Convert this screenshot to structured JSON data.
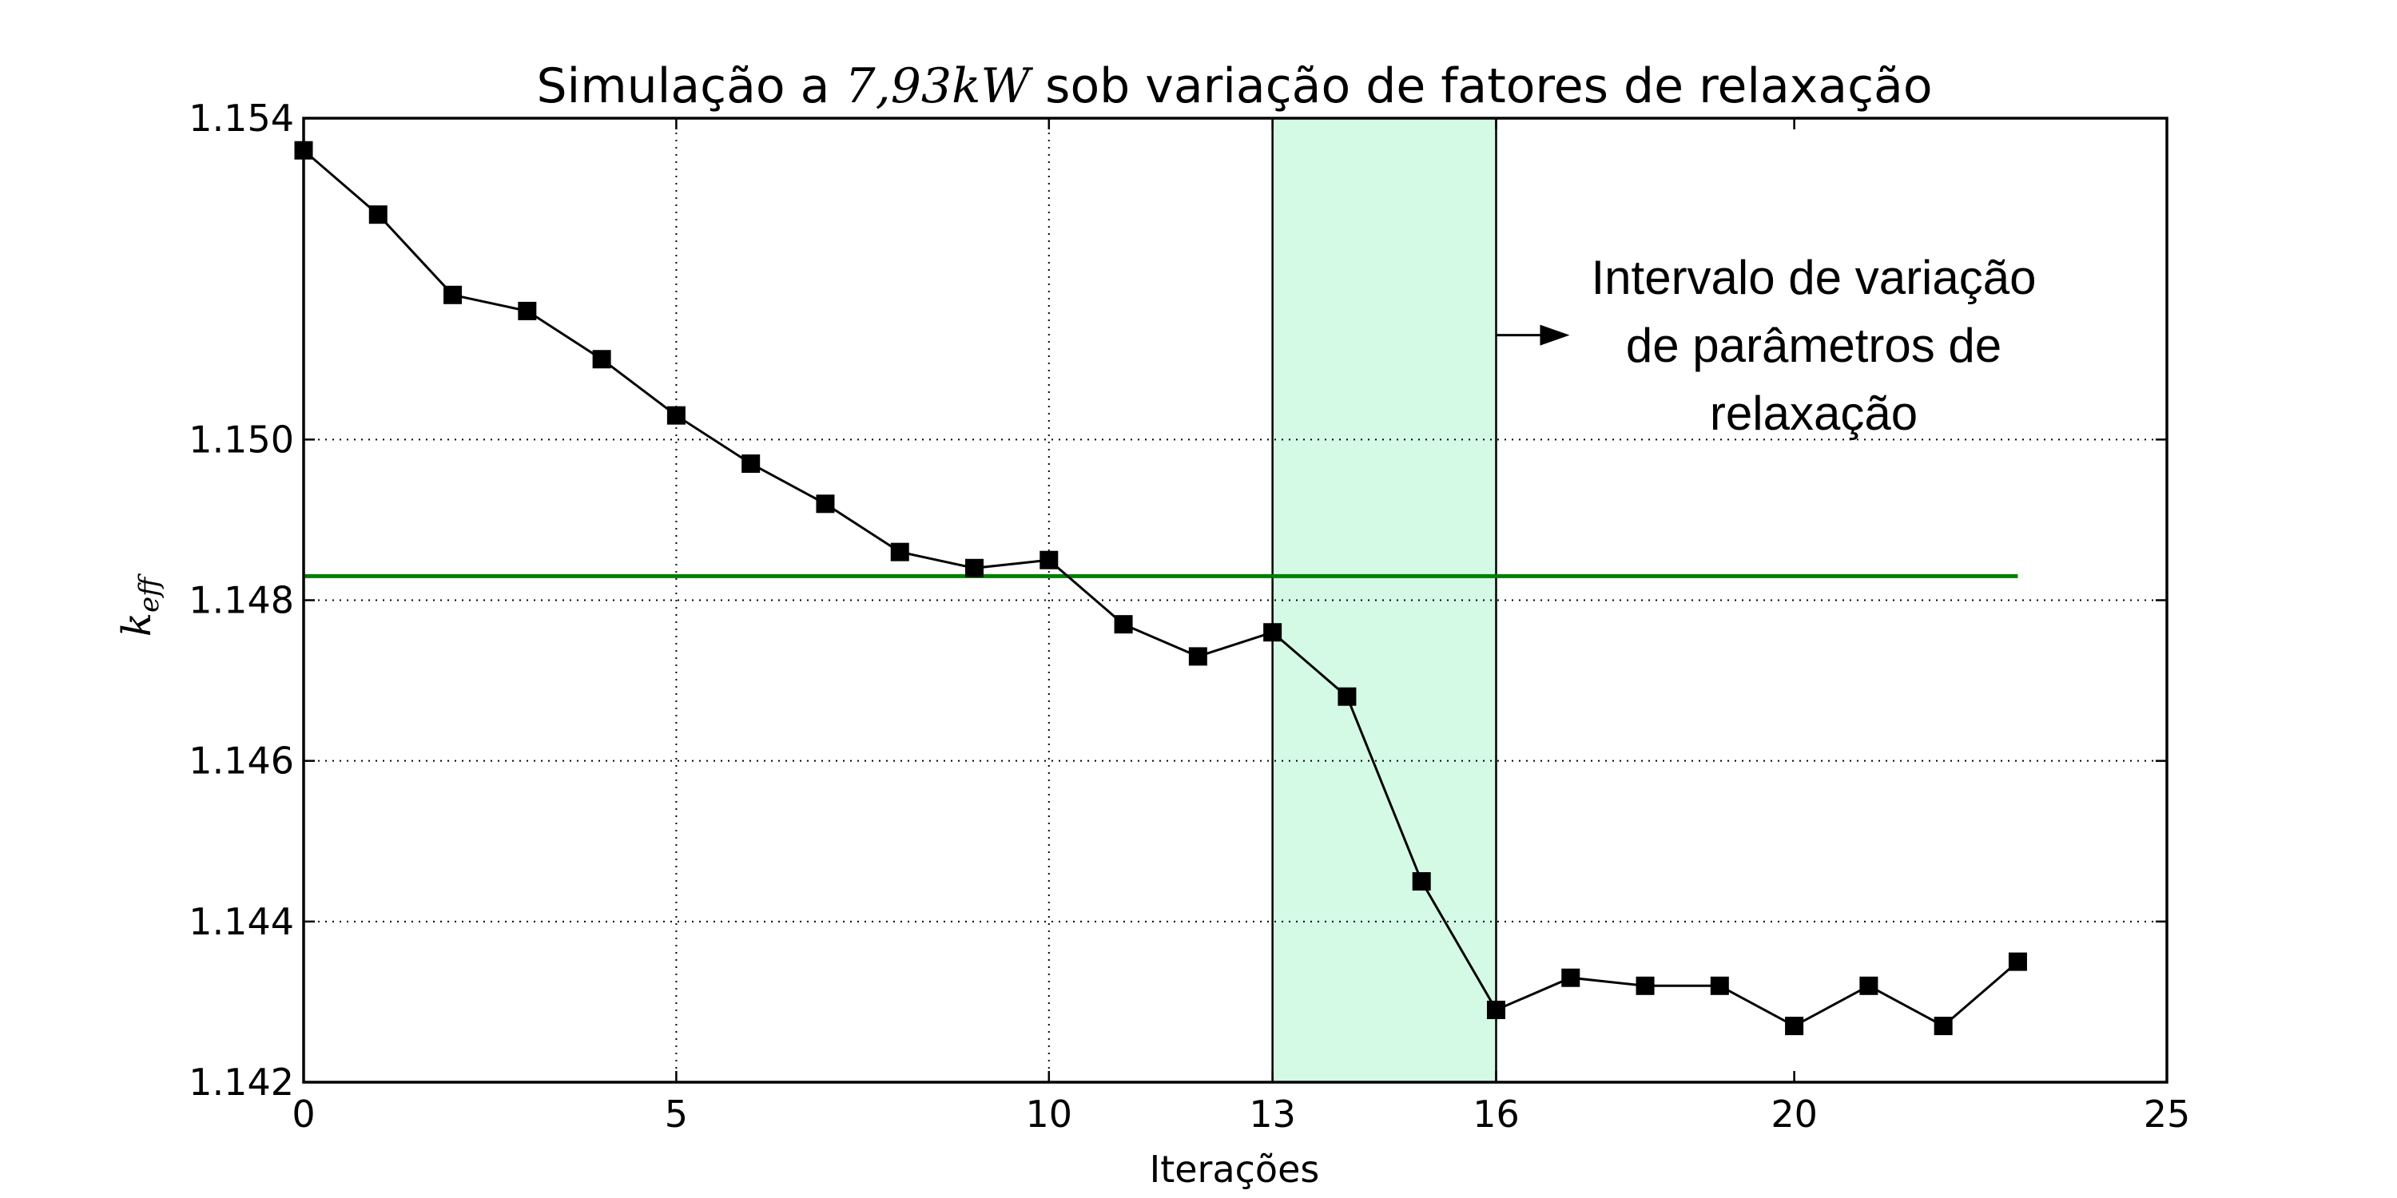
{
  "chart_data": {
    "type": "line",
    "title": {
      "prefix": "Simulação a ",
      "math": "7,93kW",
      "suffix": " sob variação de fatores de relaxação"
    },
    "xlabel": "Iterações",
    "ylabel": {
      "base": "k",
      "sub": "eff"
    },
    "xlim": [
      0,
      25
    ],
    "ylim": [
      1.142,
      1.154
    ],
    "xticks": [
      0,
      5,
      10,
      13,
      16,
      20,
      25
    ],
    "xtick_labels": [
      "0",
      "5",
      "10",
      "13",
      "16",
      "20",
      "25"
    ],
    "yticks": [
      1.142,
      1.144,
      1.146,
      1.148,
      1.15,
      1.154
    ],
    "ytick_labels": [
      "1.142",
      "1.144",
      "1.146",
      "1.148",
      "1.150",
      "1.154"
    ],
    "grid_x": [
      5,
      10
    ],
    "grid_y": [
      1.144,
      1.146,
      1.148,
      1.15
    ],
    "grid": true,
    "series": [
      {
        "x": [
          0,
          1,
          2,
          3,
          4,
          5,
          6,
          7,
          8,
          9,
          10,
          11,
          12,
          13,
          14,
          15,
          16,
          17,
          18,
          19,
          20,
          21,
          22,
          23
        ],
        "values": [
          1.1536,
          1.1528,
          1.1518,
          1.1516,
          1.151,
          1.1503,
          1.1497,
          1.1492,
          1.1486,
          1.1484,
          1.1485,
          1.1477,
          1.1473,
          1.1476,
          1.1468,
          1.1445,
          1.1429,
          1.1433,
          1.1432,
          1.1432,
          1.1427,
          1.1432,
          1.1427,
          1.1435
        ],
        "color": "#000000",
        "marker": "square"
      }
    ],
    "reference_line": {
      "y": 1.1483,
      "x_start": 0,
      "x_end": 23,
      "color": "#007f00"
    },
    "shaded_region": {
      "x_start": 13,
      "x_end": 16,
      "color": "#d4fae6"
    },
    "annotation": {
      "lines": [
        "Intervalo de variação",
        "de parâmetros de",
        "relaxação"
      ],
      "arrow_from_x": 16,
      "arrow_y": 1.1513
    }
  }
}
